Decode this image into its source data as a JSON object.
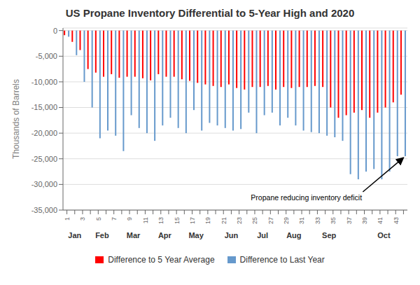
{
  "chart_data": {
    "type": "bar",
    "title": "US Propane Inventory Differential to 5-Year High and 2020",
    "ylabel": "Thousands of Barrels",
    "categories": [
      "1",
      null,
      "3",
      null,
      "5",
      null,
      "7",
      null,
      "9",
      null,
      "11",
      null,
      "13",
      null,
      "15",
      null,
      "17",
      null,
      "19",
      null,
      "21",
      null,
      "23",
      null,
      "25",
      null,
      "27",
      null,
      "29",
      null,
      "31",
      null,
      "33",
      null,
      "35",
      null,
      "37",
      null,
      "39",
      null,
      "41",
      null,
      "43",
      null
    ],
    "series": [
      {
        "name": "Difference to 5 Year Average",
        "color": "#FF0000",
        "values": [
          -900,
          -2200,
          -3800,
          -7500,
          -8200,
          -9000,
          -8500,
          -9200,
          -9000,
          -9000,
          -9300,
          -9700,
          -8500,
          -9000,
          -9000,
          -9500,
          -9800,
          -10200,
          -10500,
          -10800,
          -11000,
          -10500,
          -11200,
          -11500,
          -11000,
          -11000,
          -10800,
          -11500,
          -11000,
          -11200,
          -11000,
          -11000,
          -10800,
          -11000,
          -15000,
          -17000,
          -16500,
          -16000,
          -15500,
          -17000,
          -16000,
          -15000,
          -14000,
          -12500
        ]
      },
      {
        "name": "Difference to Last Year",
        "color": "#6699CC",
        "values": [
          -1200,
          -4800,
          -10000,
          -15000,
          -21000,
          -19500,
          -20500,
          -23500,
          -16500,
          -19000,
          -20000,
          -21500,
          -18500,
          -17000,
          -19000,
          -20000,
          -15500,
          -19500,
          -18000,
          -18500,
          -19000,
          -19500,
          -19200,
          -16000,
          -20000,
          -16500,
          -16000,
          -18500,
          -17000,
          -18500,
          -19500,
          -19800,
          -20000,
          -20500,
          -20800,
          -21500,
          -28000,
          -29000,
          -27500,
          -27000,
          -29000,
          -27500,
          -24500,
          -24500
        ]
      }
    ],
    "ylim": [
      -35000,
      500
    ],
    "yticks": [
      0,
      {
        "value": -5000,
        "label": "-5,000"
      },
      {
        "value": -10000,
        "label": "-10,000"
      },
      {
        "value": -15000,
        "label": "-15,000"
      },
      {
        "value": -20000,
        "label": "-20,000"
      },
      {
        "value": -25000,
        "label": "-25,000"
      },
      {
        "value": -30000,
        "label": "-30,000"
      },
      {
        "value": -35000,
        "label": "-35,000"
      }
    ],
    "grid": true,
    "legend": "bottom",
    "annotations": [
      {
        "text": "Propane reducing inventory deficit",
        "x": 44,
        "y": -24500
      },
      {
        "text": "Jan",
        "x": 2.0
      },
      {
        "text": "Feb",
        "x": 5.5
      },
      {
        "text": "Mar",
        "x": 9.5
      },
      {
        "text": "Apr",
        "x": 13.5
      },
      {
        "text": "May",
        "x": 17.5
      },
      {
        "text": "Jun",
        "x": 22.0
      },
      {
        "text": "Jul",
        "x": 26.0
      },
      {
        "text": "Aug",
        "x": 30.0
      },
      {
        "text": "Sep",
        "x": 34.5
      },
      {
        "text": "Oct",
        "x": 41.5
      }
    ]
  }
}
